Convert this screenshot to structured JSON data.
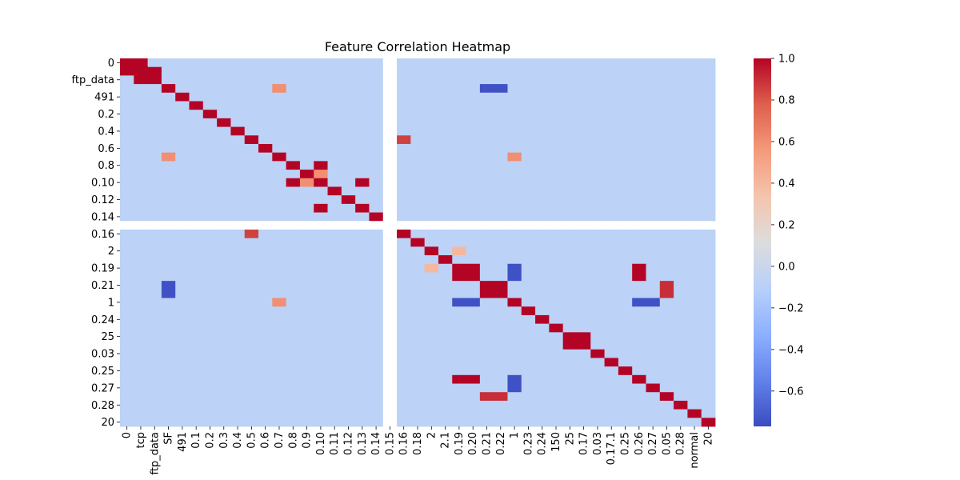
{
  "chart_data": {
    "type": "heatmap",
    "title": "Feature Correlation Heatmap",
    "xlabel": "",
    "ylabel": "",
    "colormap": "coolwarm",
    "colorscale_range": [
      -0.77,
      1.0
    ],
    "colorbar_ticks": [
      "1.0",
      "0.8",
      "0.6",
      "0.4",
      "0.2",
      "0.0",
      "−0.2",
      "−0.4",
      "−0.6"
    ],
    "colorbar_tick_values": [
      1.0,
      0.8,
      0.6,
      0.4,
      0.2,
      0.0,
      -0.2,
      -0.4,
      -0.6
    ],
    "y_tick_labels": [
      "0",
      "ftp_data",
      "491",
      "0.2",
      "0.4",
      "0.6",
      "0.8",
      "0.10",
      "0.12",
      "0.14",
      "0.16",
      "2",
      "0.19",
      "0.21",
      "1",
      "0.24",
      "25",
      "0.03",
      "0.25",
      "0.27",
      "0.28",
      "20"
    ],
    "x_tick_labels": [
      "0",
      "tcp",
      "ftp_data",
      "SF",
      "491",
      "0.1",
      "0.2",
      "0.3",
      "0.4",
      "0.5",
      "0.6",
      "0.7",
      "0.8",
      "0.9",
      "0.10",
      "0.11",
      "0.12",
      "0.13",
      "0.14",
      "0.15",
      "0.16",
      "0.18",
      "2",
      "2.1",
      "0.19",
      "0.20",
      "0.21",
      "0.22",
      "1",
      "0.23",
      "0.24",
      "150",
      "25",
      "0.17",
      "0.03",
      "0.17.1",
      "0.25",
      "0.26",
      "0.27",
      "0.05",
      "0.28",
      "normal",
      "20"
    ],
    "matrix_size": 43,
    "missing_row_col_index": 19,
    "diagonal_value": 1.0,
    "notable_correlations": [
      {
        "a": 0,
        "b": 1,
        "value": 1.0
      },
      {
        "a": 2,
        "b": 1,
        "value": 1.0
      },
      {
        "a": 3,
        "b": 11,
        "value": 0.6
      },
      {
        "a": 14,
        "b": 17,
        "value": 1.0
      },
      {
        "a": 12,
        "b": 14,
        "value": 1.0
      },
      {
        "a": 13,
        "b": 14,
        "value": 0.6
      },
      {
        "a": 9,
        "b": 20,
        "value": 0.85
      },
      {
        "a": 24,
        "b": 25,
        "value": 1.0
      },
      {
        "a": 24,
        "b": 37,
        "value": 1.0
      },
      {
        "a": 25,
        "b": 37,
        "value": 1.0
      },
      {
        "a": 26,
        "b": 27,
        "value": 1.0
      },
      {
        "a": 26,
        "b": 39,
        "value": 0.9
      },
      {
        "a": 27,
        "b": 39,
        "value": 0.9
      },
      {
        "a": 32,
        "b": 33,
        "value": 1.0
      },
      {
        "a": 22,
        "b": 24,
        "value": 0.4
      },
      {
        "a": 3,
        "b": 26,
        "value": -0.75
      },
      {
        "a": 3,
        "b": 27,
        "value": -0.75
      },
      {
        "a": 28,
        "b": 24,
        "value": -0.75
      },
      {
        "a": 28,
        "b": 25,
        "value": -0.75
      },
      {
        "a": 28,
        "b": 37,
        "value": -0.75
      },
      {
        "a": 28,
        "b": 38,
        "value": -0.75
      },
      {
        "a": 11,
        "b": 28,
        "value": 0.6
      }
    ]
  }
}
